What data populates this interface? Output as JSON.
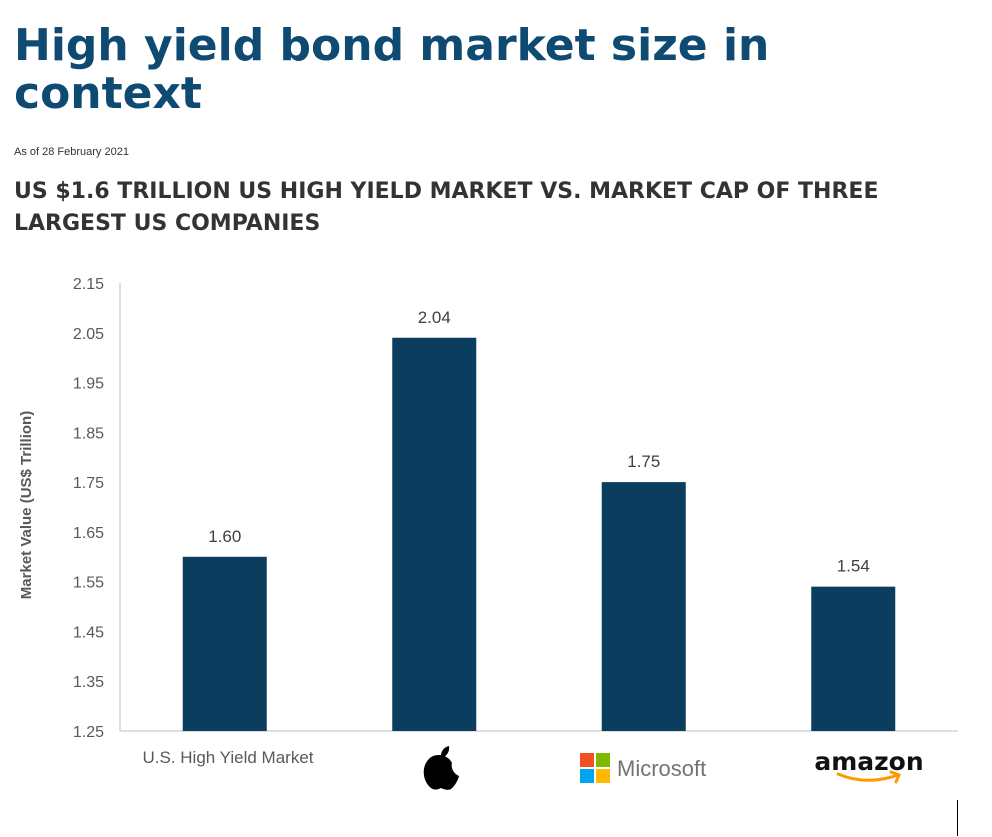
{
  "header": {
    "title": "High yield bond market size in context",
    "as_of": "As of 28 February 2021",
    "subtitle": "US $1.6 TRILLION US HIGH YIELD MARKET VS. MARKET CAP OF THREE LARGEST US COMPANIES"
  },
  "chart_data": {
    "type": "bar",
    "categories": [
      "U.S. High Yield Market",
      "Apple",
      "Microsoft",
      "amazon"
    ],
    "values": [
      1.6,
      2.04,
      1.75,
      1.54
    ],
    "data_labels": [
      "1.60",
      "2.04",
      "1.75",
      "1.54"
    ],
    "ylabel": "Market Value (US$ Trillion)",
    "ylim": [
      1.25,
      2.15
    ],
    "yticks": [
      "1.25",
      "1.35",
      "1.45",
      "1.55",
      "1.65",
      "1.75",
      "1.85",
      "1.95",
      "2.05",
      "2.15"
    ],
    "grid": false,
    "bar_color": "#0b3d5e",
    "axis_color": "#bfbfbf",
    "category_labels": {
      "hy_text": "U.S. High Yield Market",
      "microsoft_text": "Microsoft",
      "amazon_text": "amazon"
    },
    "logo_colors": {
      "microsoft": [
        "#f25022",
        "#7fba00",
        "#00a4ef",
        "#ffb900"
      ],
      "amazon_smile": "#ff9900"
    }
  }
}
